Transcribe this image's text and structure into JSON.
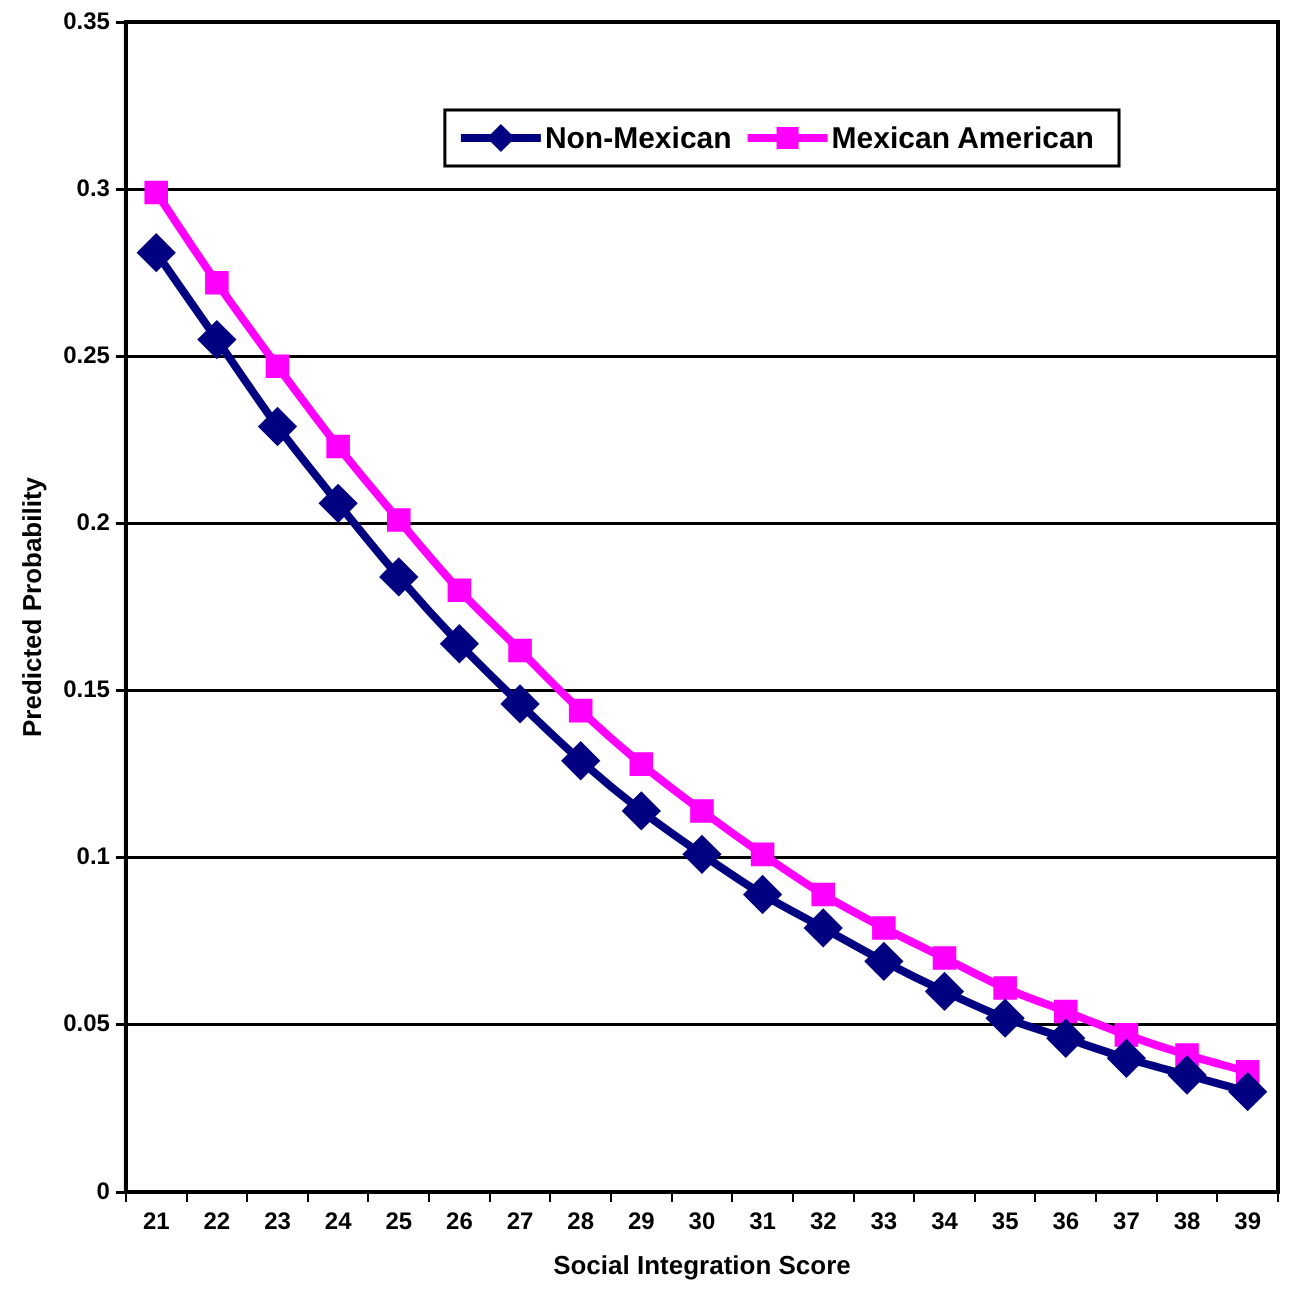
{
  "chart_data": {
    "type": "line",
    "xlabel": "Social Integration Score",
    "ylabel": "Predicted Probability",
    "categories": [
      "21",
      "22",
      "23",
      "24",
      "25",
      "26",
      "27",
      "28",
      "29",
      "30",
      "31",
      "32",
      "33",
      "34",
      "35",
      "36",
      "37",
      "38",
      "39"
    ],
    "series": [
      {
        "name": "Non-Mexican",
        "color": "#000080",
        "marker": "diamond",
        "values": [
          0.281,
          0.255,
          0.229,
          0.206,
          0.184,
          0.164,
          0.146,
          0.129,
          0.114,
          0.101,
          0.089,
          0.079,
          0.069,
          0.06,
          0.052,
          0.046,
          0.04,
          0.035,
          0.03
        ]
      },
      {
        "name": "Mexican American",
        "color": "#ff00ff",
        "marker": "square",
        "values": [
          0.299,
          0.272,
          0.247,
          0.223,
          0.201,
          0.18,
          0.162,
          0.144,
          0.128,
          0.114,
          0.101,
          0.089,
          0.079,
          0.07,
          0.061,
          0.054,
          0.047,
          0.041,
          0.036
        ]
      }
    ],
    "ylim": [
      0,
      0.35
    ],
    "yticks": [
      0,
      0.05,
      0.1,
      0.15,
      0.2,
      0.25,
      0.3,
      0.35
    ],
    "grid": "y",
    "legend": "top"
  }
}
